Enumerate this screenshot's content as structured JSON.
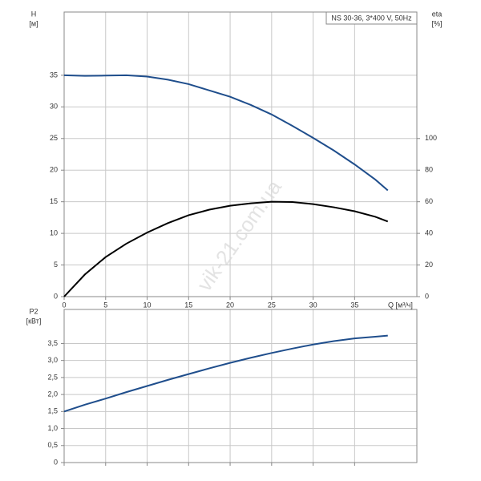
{
  "chart_data": [
    {
      "type": "line",
      "title": "NS 30-36, 3*400 V, 50Hz",
      "ylabel": "H",
      "yunit": "[м]",
      "y2label": "eta",
      "y2unit": "[%]",
      "xlabel": "Q [м³/ч]",
      "watermark": "vik-21.com.ua",
      "x": [
        0,
        2.5,
        5,
        7.5,
        10,
        12.5,
        15,
        17.5,
        20,
        22.5,
        25,
        27.5,
        30,
        32.5,
        35,
        37.5,
        39
      ],
      "series": [
        {
          "color": "#1f4e8c",
          "axis": "y",
          "values": [
            35,
            34.9,
            34.95,
            35,
            34.8,
            34.3,
            33.6,
            32.6,
            31.6,
            30.3,
            28.8,
            27,
            25.1,
            23.1,
            20.9,
            18.5,
            16.8
          ]
        },
        {
          "color": "#000000",
          "axis": "y2",
          "values": [
            0,
            14,
            25,
            33.5,
            40.5,
            46.5,
            51.5,
            55,
            57.5,
            59,
            60,
            59.8,
            58.5,
            56.5,
            54,
            50.5,
            47.5
          ]
        }
      ],
      "xlim": [
        0,
        42.5
      ],
      "xticks": [
        0,
        5,
        10,
        15,
        20,
        25,
        30,
        35
      ],
      "ylim": [
        0,
        45
      ],
      "yticks": [
        0,
        5,
        10,
        15,
        20,
        25,
        30,
        35
      ],
      "y2lim": [
        0,
        180
      ],
      "y2ticks": [
        0,
        20,
        40,
        60,
        80,
        100
      ],
      "grid": true
    },
    {
      "type": "line",
      "ylabel": "P2",
      "yunit": "[кВт]",
      "x": [
        0,
        2.5,
        5,
        7.5,
        10,
        12.5,
        15,
        17.5,
        20,
        22.5,
        25,
        27.5,
        30,
        32.5,
        35,
        37.5,
        39
      ],
      "series": [
        {
          "color": "#1f4e8c",
          "axis": "y",
          "values": [
            1.5,
            1.7,
            1.88,
            2.07,
            2.25,
            2.43,
            2.6,
            2.77,
            2.93,
            3.08,
            3.22,
            3.35,
            3.47,
            3.57,
            3.65,
            3.7,
            3.73
          ]
        }
      ],
      "xlim": [
        0,
        42.5
      ],
      "xticks": [
        0,
        5,
        10,
        15,
        20,
        25,
        30,
        35
      ],
      "xtick_labels": false,
      "ylim": [
        0,
        4.5
      ],
      "yticks": [
        0,
        {
          "value": 0.5,
          "label": "0,5"
        },
        {
          "value": 1,
          "label": "1,0"
        },
        {
          "value": 1.5,
          "label": "1,5"
        },
        {
          "value": 2,
          "label": "2,0"
        },
        {
          "value": 2.5,
          "label": "2,5"
        },
        {
          "value": 3,
          "label": "3,0"
        },
        {
          "value": 3.5,
          "label": "3,5"
        }
      ],
      "grid": true
    }
  ]
}
